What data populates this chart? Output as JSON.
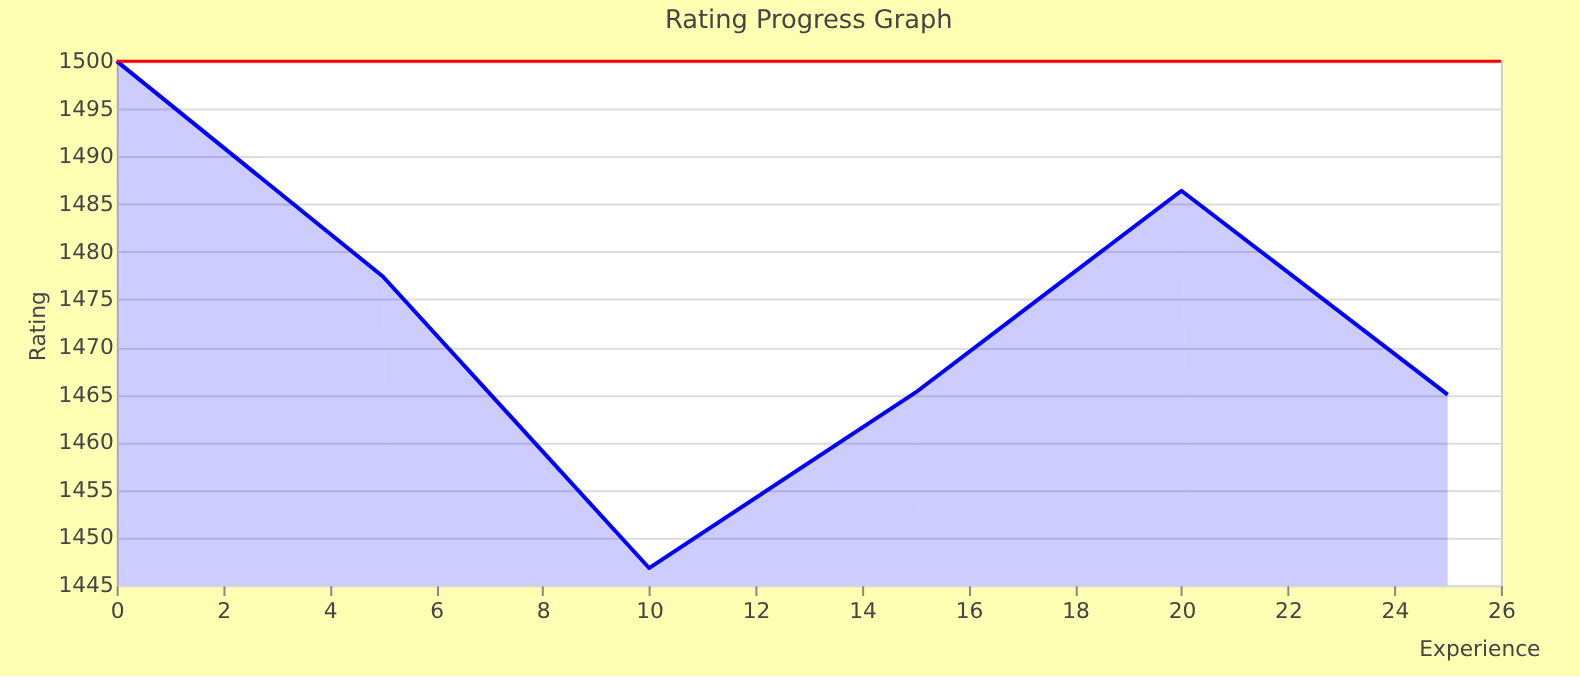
{
  "chart_data": {
    "type": "area",
    "title": "Rating Progress Graph",
    "xlabel": "Experience",
    "ylabel": "Rating",
    "x": [
      0,
      5,
      10,
      15,
      20,
      25
    ],
    "series": [
      {
        "color": "#0000ff",
        "values": [
          1500,
          1477.4,
          1446.8,
          1465.2,
          1486.4,
          1465.0
        ]
      }
    ],
    "xlim": [
      0,
      26
    ],
    "xticks": [
      0,
      2,
      4,
      6,
      8,
      10,
      12,
      14,
      16,
      18,
      20,
      22,
      24,
      26
    ],
    "ylim": [
      1445,
      1500
    ],
    "yticks": [
      1445,
      1450,
      1455,
      1460,
      1465,
      1470,
      1475,
      1480,
      1485,
      1490,
      1495,
      1500
    ],
    "ref_lines": [
      {
        "axis": "y",
        "value": 1500,
        "color": "#ff0000"
      }
    ],
    "grid": "y"
  }
}
